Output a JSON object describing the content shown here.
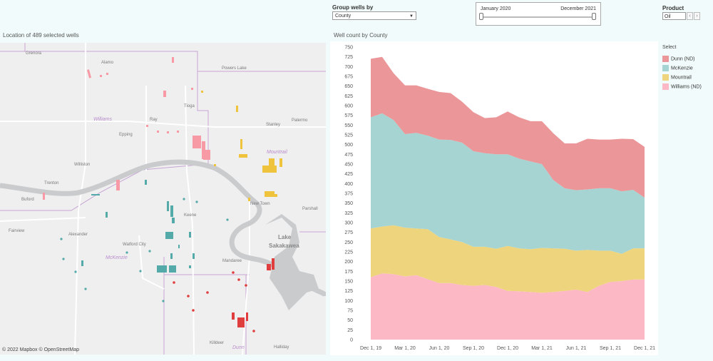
{
  "controls": {
    "group_label": "Group wells by",
    "group_value": "County",
    "date_start": "January 2020",
    "date_end": "December 2021",
    "date_start_fraction": 0.0,
    "date_end_fraction": 1.0,
    "product_label": "Product",
    "product_value": "Oil",
    "prev_icon": "chevron-left-icon",
    "next_icon": "chevron-right-icon"
  },
  "map": {
    "title": "Location of 489 selected wells",
    "attribution": "© 2022 Mapbox  © OpenStreetMap",
    "places": [
      "Grenora",
      "Alamo",
      "Powers Lake",
      "Tioga",
      "Ray",
      "Williams",
      "Epping",
      "Stanley",
      "Palermo",
      "Mountrail",
      "Williston",
      "Trenton",
      "Buford",
      "New Town",
      "Parshall",
      "Keene",
      "Fairview",
      "Alexander",
      "Watford City",
      "McKenzie",
      "Lake",
      "Sakakawea",
      "Mandaree",
      "Killdeer",
      "Dunn",
      "Halliday"
    ]
  },
  "chart_data": {
    "type": "area",
    "stacked": true,
    "title": "Well count by County",
    "x": [
      "Dec 1, 19",
      "Jan 1, 20",
      "Feb 1, 20",
      "Mar 1, 20",
      "Apr 1, 20",
      "May 1, 20",
      "Jun 1, 20",
      "Jul 1, 20",
      "Aug 1, 20",
      "Sep 1, 20",
      "Oct 1, 20",
      "Nov 1, 20",
      "Dec 1, 20",
      "Jan 1, 21",
      "Feb 1, 21",
      "Mar 1, 21",
      "Apr 1, 21",
      "May 1, 21",
      "Jun 1, 21",
      "Jul 1, 21",
      "Aug 1, 21",
      "Sep 1, 21",
      "Oct 1, 21",
      "Nov 1, 21",
      "Dec 1, 21"
    ],
    "x_tick_labels": [
      "Dec 1, 19",
      "Mar 1, 20",
      "Jun 1, 20",
      "Sep 1, 20",
      "Dec 1, 20",
      "Mar 1, 21",
      "Jun 1, 21",
      "Sep 1, 21",
      "Dec 1, 21"
    ],
    "ylim": [
      0,
      750
    ],
    "y_ticks": [
      0,
      25,
      50,
      75,
      100,
      125,
      150,
      175,
      200,
      225,
      250,
      275,
      300,
      325,
      350,
      375,
      400,
      425,
      450,
      475,
      500,
      525,
      550,
      575,
      600,
      625,
      650,
      675,
      700,
      725,
      750
    ],
    "grid": false,
    "legend_title": "Select",
    "legend_position": "right",
    "series": [
      {
        "name": "Williams (ND)",
        "color": "#fcb8c4",
        "values": [
          160,
          170,
          168,
          162,
          165,
          155,
          145,
          145,
          140,
          138,
          140,
          135,
          125,
          124,
          122,
          120,
          122,
          125,
          128,
          122,
          138,
          148,
          150,
          154,
          154
        ]
      },
      {
        "name": "Mountrail",
        "color": "#eed47c",
        "values": [
          125,
          120,
          125,
          125,
          120,
          128,
          118,
          112,
          110,
          100,
          98,
          98,
          115,
          110,
          110,
          115,
          112,
          108,
          100,
          108,
          90,
          80,
          70,
          80,
          80
        ]
      },
      {
        "name": "McKenzie",
        "color": "#a6d4d2",
        "values": [
          285,
          290,
          270,
          240,
          245,
          240,
          250,
          255,
          255,
          245,
          240,
          242,
          235,
          230,
          225,
          215,
          175,
          155,
          155,
          155,
          160,
          160,
          160,
          150,
          130
        ]
      },
      {
        "name": "Dunn (ND)",
        "color": "#eb9698",
        "values": [
          150,
          145,
          120,
          125,
          122,
          120,
          122,
          120,
          105,
          100,
          90,
          95,
          110,
          106,
          103,
          110,
          120,
          115,
          120,
          130,
          125,
          125,
          135,
          130,
          130
        ]
      }
    ]
  }
}
